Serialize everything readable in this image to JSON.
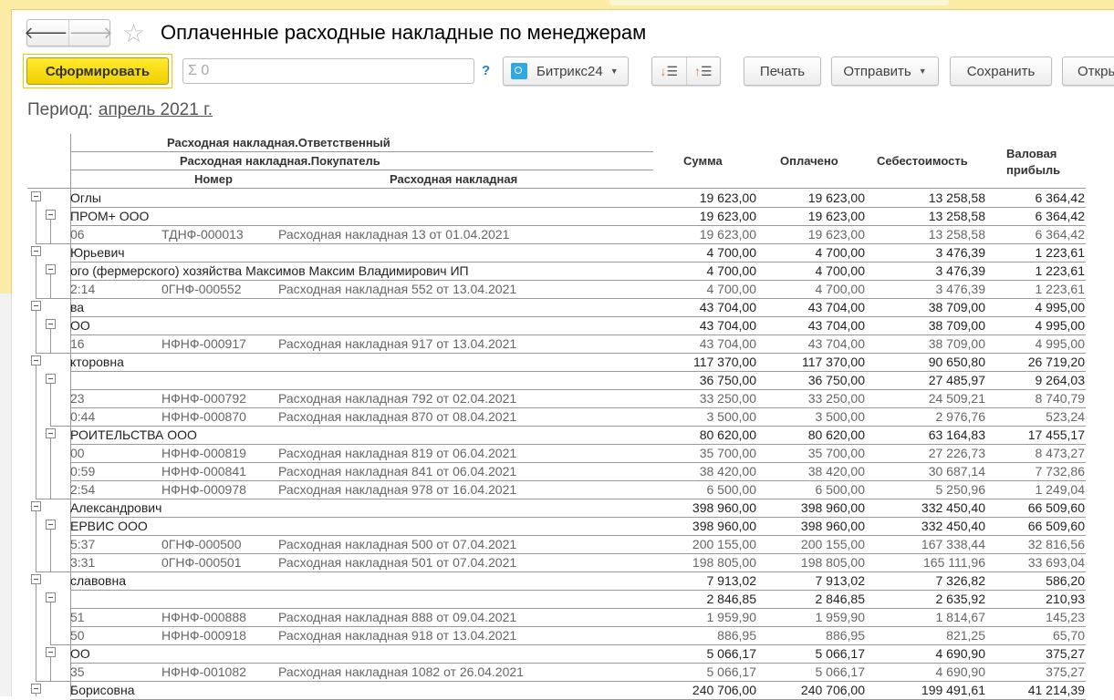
{
  "title": "Оплаченные расходные накладные по менеджерам",
  "toolbar": {
    "back": "🡐",
    "forward": "🡒",
    "generate": "Сформировать",
    "sum_field": "Σ 0",
    "help": "?",
    "bitrix": "Битрикс24",
    "print": "Печать",
    "send": "Отправить",
    "save": "Сохранить",
    "open": "Откры"
  },
  "period": {
    "label": "Период:",
    "value": "апрель 2021 г."
  },
  "headers": {
    "responsible": "Расходная накладная.Ответственный",
    "buyer": "Расходная накладная.Покупатель",
    "number": "Номер",
    "invoice": "Расходная накладная",
    "sum": "Сумма",
    "paid": "Оплачено",
    "cost": "Себестоимость",
    "profit": "Валовая прибыль"
  },
  "colors": {
    "accent": "#f0d000",
    "panel": "#fbeba5",
    "link": "#2a7ec8"
  },
  "rows": [
    {
      "level": 0,
      "text": "Оглы",
      "values": [
        "19 623,00",
        "19 623,00",
        "13 258,58",
        "6 364,42"
      ]
    },
    {
      "level": 1,
      "text": "ПРОМ+ ООО",
      "values": [
        "19 623,00",
        "19 623,00",
        "13 258,58",
        "6 364,42"
      ]
    },
    {
      "level": 2,
      "text": "06",
      "number": "ТДНФ-000013",
      "invoice": "Расходная накладная 13  от 01.04.2021",
      "values": [
        "19 623,00",
        "19 623,00",
        "13 258,58",
        "6 364,42"
      ]
    },
    {
      "level": 0,
      "text": "Юрьевич",
      "values": [
        "4 700,00",
        "4 700,00",
        "3 476,39",
        "1 223,61"
      ]
    },
    {
      "level": 1,
      "text": "ого (фермерского) хозяйства Максимов Максим Владимирович ИП",
      "values": [
        "4 700,00",
        "4 700,00",
        "3 476,39",
        "1 223,61"
      ]
    },
    {
      "level": 2,
      "text": "2:14",
      "number": "0ГНФ-000552",
      "invoice": "Расходная накладная 552  от 13.04.2021",
      "values": [
        "4 700,00",
        "4 700,00",
        "3 476,39",
        "1 223,61"
      ]
    },
    {
      "level": 0,
      "text": "ва",
      "values": [
        "43 704,00",
        "43 704,00",
        "38 709,00",
        "4 995,00"
      ]
    },
    {
      "level": 1,
      "text": "ОО",
      "values": [
        "43 704,00",
        "43 704,00",
        "38 709,00",
        "4 995,00"
      ]
    },
    {
      "level": 2,
      "text": "16",
      "number": "НФНФ-000917",
      "invoice": "Расходная накладная 917  от 13.04.2021",
      "values": [
        "43 704,00",
        "43 704,00",
        "38 709,00",
        "4 995,00"
      ]
    },
    {
      "level": 0,
      "text": "кторовна",
      "values": [
        "117 370,00",
        "117 370,00",
        "90 650,80",
        "26 719,20"
      ]
    },
    {
      "level": 1,
      "text": "",
      "values": [
        "36 750,00",
        "36 750,00",
        "27 485,97",
        "9 264,03"
      ]
    },
    {
      "level": 2,
      "text": "23",
      "number": "НФНФ-000792",
      "invoice": "Расходная накладная 792  от 02.04.2021",
      "values": [
        "33 250,00",
        "33 250,00",
        "24 509,21",
        "8 740,79"
      ]
    },
    {
      "level": 2,
      "text": "0:44",
      "number": "НФНФ-000870",
      "invoice": "Расходная накладная 870  от 08.04.2021",
      "values": [
        "3 500,00",
        "3 500,00",
        "2 976,76",
        "523,24"
      ]
    },
    {
      "level": 1,
      "text": "РОИТЕЛЬСТВА ООО",
      "values": [
        "80 620,00",
        "80 620,00",
        "63 164,83",
        "17 455,17"
      ]
    },
    {
      "level": 2,
      "text": "00",
      "number": "НФНФ-000819",
      "invoice": "Расходная накладная 819  от 06.04.2021",
      "values": [
        "35 700,00",
        "35 700,00",
        "27 226,73",
        "8 473,27"
      ]
    },
    {
      "level": 2,
      "text": "0:59",
      "number": "НФНФ-000841",
      "invoice": "Расходная накладная 841  от 06.04.2021",
      "values": [
        "38 420,00",
        "38 420,00",
        "30 687,14",
        "7 732,86"
      ]
    },
    {
      "level": 2,
      "text": "2:54",
      "number": "НФНФ-000978",
      "invoice": "Расходная накладная 978  от 16.04.2021",
      "values": [
        "6 500,00",
        "6 500,00",
        "5 250,96",
        "1 249,04"
      ]
    },
    {
      "level": 0,
      "text": "Александрович",
      "values": [
        "398 960,00",
        "398 960,00",
        "332 450,40",
        "66 509,60"
      ]
    },
    {
      "level": 1,
      "text": "ЕРВИС ООО",
      "values": [
        "398 960,00",
        "398 960,00",
        "332 450,40",
        "66 509,60"
      ]
    },
    {
      "level": 2,
      "text": "5:37",
      "number": "0ГНФ-000500",
      "invoice": "Расходная накладная 500  от 07.04.2021",
      "values": [
        "200 155,00",
        "200 155,00",
        "167 338,44",
        "32 816,56"
      ]
    },
    {
      "level": 2,
      "text": "3:31",
      "number": "0ГНФ-000501",
      "invoice": "Расходная накладная 501  от 07.04.2021",
      "values": [
        "198 805,00",
        "198 805,00",
        "165 111,96",
        "33 693,04"
      ]
    },
    {
      "level": 0,
      "text": "славовна",
      "values": [
        "7 913,02",
        "7 913,02",
        "7 326,82",
        "586,20"
      ]
    },
    {
      "level": 1,
      "text": "",
      "values": [
        "2 846,85",
        "2 846,85",
        "2 635,92",
        "210,93"
      ]
    },
    {
      "level": 2,
      "text": "51",
      "number": "НФНФ-000888",
      "invoice": "Расходная накладная 888  от 09.04.2021",
      "values": [
        "1 959,90",
        "1 959,90",
        "1 814,67",
        "145,23"
      ]
    },
    {
      "level": 2,
      "text": "50",
      "number": "НФНФ-000918",
      "invoice": "Расходная накладная 918  от 13.04.2021",
      "values": [
        "886,95",
        "886,95",
        "821,25",
        "65,70"
      ]
    },
    {
      "level": 1,
      "text": "ОО",
      "values": [
        "5 066,17",
        "5 066,17",
        "4 690,90",
        "375,27"
      ]
    },
    {
      "level": 2,
      "text": "35",
      "number": "НФНФ-001082",
      "invoice": "Расходная накладная 1082  от 26.04.2021",
      "values": [
        "5 066,17",
        "5 066,17",
        "4 690,90",
        "375,27"
      ]
    },
    {
      "level": 0,
      "text": "Борисовна",
      "values": [
        "240 706,00",
        "240 706,00",
        "199 491,61",
        "41 214,39"
      ]
    }
  ]
}
